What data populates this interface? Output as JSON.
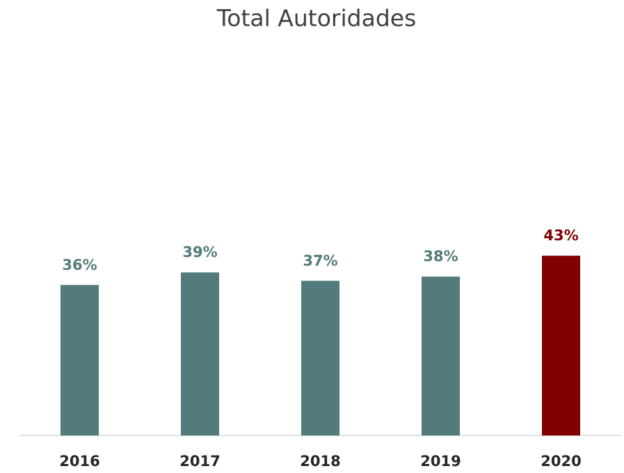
{
  "chart_data": {
    "type": "bar",
    "title": "Total Autoridades",
    "categories": [
      "2016",
      "2017",
      "2018",
      "2019",
      "2020"
    ],
    "values": [
      36,
      39,
      37,
      38,
      43
    ],
    "value_labels": [
      "36%",
      "39%",
      "37%",
      "38%",
      "43%"
    ],
    "colors": [
      "#537b7b",
      "#537b7b",
      "#537b7b",
      "#537b7b",
      "#800000"
    ]
  }
}
